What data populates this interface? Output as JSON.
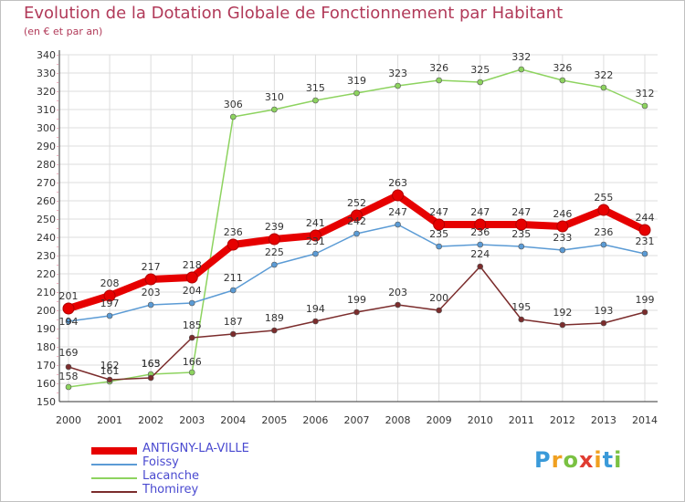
{
  "title": "Evolution de la Dotation Globale de Fonctionnement par Habitant",
  "subtitle": "(en € et par an)",
  "logo": {
    "text": "Proxiti",
    "letters": [
      {
        "ch": "P",
        "color": "#3a9ad9"
      },
      {
        "ch": "r",
        "color": "#f0a020"
      },
      {
        "ch": "o",
        "color": "#7ac142"
      },
      {
        "ch": "x",
        "color": "#e03c31"
      },
      {
        "ch": "i",
        "color": "#f0a020"
      },
      {
        "ch": "t",
        "color": "#3a9ad9"
      },
      {
        "ch": "i",
        "color": "#7ac142"
      }
    ]
  },
  "chart_data": {
    "type": "line",
    "title": "Evolution de la Dotation Globale de Fonctionnement par Habitant",
    "subtitle": "(en € et par an)",
    "xlabel": "",
    "ylabel": "",
    "x": [
      "2000",
      "2001",
      "2002",
      "2003",
      "2004",
      "2005",
      "2006",
      "2007",
      "2008",
      "2009",
      "2010",
      "2011",
      "2012",
      "2013",
      "2014"
    ],
    "ylim": [
      150,
      340
    ],
    "ytick_step": 10,
    "grid": true,
    "legend": "bottom-left",
    "series": [
      {
        "name": "ANTIGNY-LA-VILLE",
        "color": "#e60000",
        "values": [
          201,
          208,
          217,
          218,
          236,
          239,
          241,
          252,
          263,
          247,
          247,
          247,
          246,
          255,
          244
        ]
      },
      {
        "name": "Foissy",
        "color": "#5b9bd5",
        "values": [
          194,
          197,
          203,
          204,
          211,
          225,
          231,
          242,
          247,
          235,
          236,
          235,
          233,
          236,
          231
        ]
      },
      {
        "name": "Lacanche",
        "color": "#8dd35f",
        "values": [
          158,
          161,
          165,
          166,
          306,
          310,
          315,
          319,
          323,
          326,
          325,
          332,
          326,
          322,
          312
        ]
      },
      {
        "name": "Thomirey",
        "color": "#7b2c2c",
        "values": [
          169,
          162,
          163,
          185,
          187,
          189,
          194,
          199,
          203,
          200,
          224,
          195,
          192,
          193,
          199
        ]
      }
    ],
    "data_labels": [
      {
        "series": 0,
        "labels": [
          "201",
          "208",
          "217",
          "218",
          "236",
          "239",
          "241",
          "252",
          "263",
          "247",
          "247",
          "247",
          "246",
          "255",
          "244"
        ]
      },
      {
        "series": 1,
        "labels": [
          "194",
          "197",
          "203",
          "204",
          "211",
          "225",
          "231",
          "242",
          "247",
          "235",
          "236",
          "235",
          "233",
          "236",
          "231"
        ]
      },
      {
        "series": 2,
        "labels": [
          "158",
          "161",
          "165",
          "166",
          "306",
          "310",
          "315",
          "319",
          "323",
          "326",
          "325",
          "332",
          "326",
          "322",
          "312"
        ]
      },
      {
        "series": 3,
        "labels": [
          "169",
          "162",
          "163",
          "185",
          "187",
          "189",
          "194",
          "199",
          "203",
          "200",
          "224",
          "195",
          "192",
          "193",
          "199"
        ]
      }
    ]
  }
}
